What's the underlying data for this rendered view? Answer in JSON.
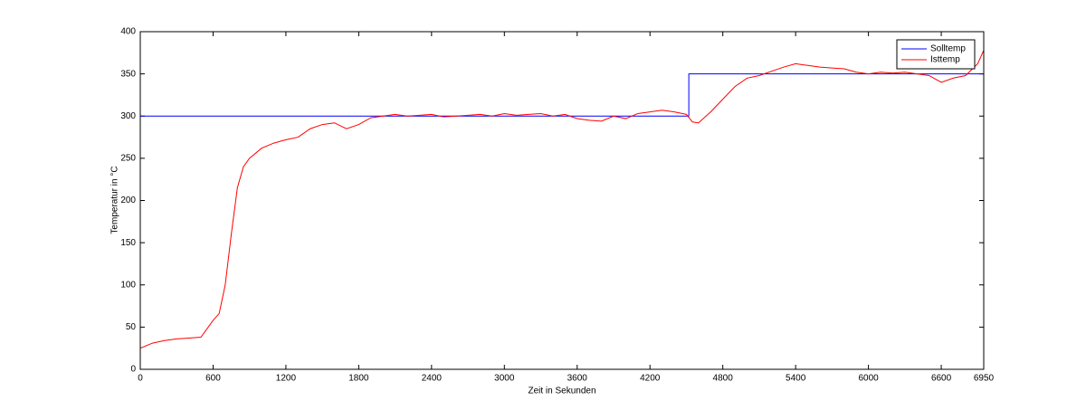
{
  "chart_data": {
    "type": "line",
    "xlabel": "Zeit in Sekunden",
    "ylabel": "Temperatur in °C",
    "x": [
      0,
      100,
      200,
      300,
      400,
      500,
      600,
      650,
      700,
      750,
      800,
      850,
      900,
      1000,
      1100,
      1200,
      1300,
      1400,
      1500,
      1600,
      1700,
      1800,
      1900,
      2000,
      2100,
      2200,
      2300,
      2400,
      2500,
      2600,
      2700,
      2800,
      2900,
      3000,
      3100,
      3200,
      3300,
      3400,
      3500,
      3600,
      3700,
      3800,
      3900,
      4000,
      4100,
      4200,
      4300,
      4400,
      4500,
      4550,
      4600,
      4700,
      4800,
      4900,
      5000,
      5100,
      5200,
      5300,
      5400,
      5500,
      5600,
      5700,
      5800,
      5900,
      6000,
      6100,
      6200,
      6300,
      6400,
      6500,
      6600,
      6700,
      6800,
      6900,
      6950
    ],
    "series": [
      {
        "name": "Solltemp",
        "color": "#0000ff",
        "x": [
          0,
          4520,
          4520,
          6950
        ],
        "values": [
          300,
          300,
          350,
          350
        ]
      },
      {
        "name": "Isttemp",
        "color": "#ff0000",
        "values": [
          25,
          31,
          34,
          36,
          37,
          38,
          58,
          66,
          100,
          160,
          215,
          240,
          250,
          262,
          268,
          272,
          275,
          285,
          290,
          292,
          285,
          290,
          298,
          300,
          302,
          300,
          301,
          302,
          299,
          300,
          301,
          302,
          300,
          303,
          301,
          302,
          303,
          300,
          302,
          297,
          295,
          294,
          300,
          297,
          303,
          305,
          307,
          305,
          302,
          293,
          292,
          305,
          320,
          335,
          345,
          348,
          353,
          358,
          362,
          360,
          358,
          357,
          356,
          352,
          350,
          352,
          351,
          352,
          350,
          348,
          340,
          345,
          348,
          362,
          378
        ]
      }
    ],
    "xlim": [
      0,
      6950
    ],
    "xticks": [
      0,
      600,
      1200,
      1800,
      2400,
      3000,
      3600,
      4200,
      4800,
      5400,
      6000,
      6600,
      6950
    ],
    "ylim": [
      0,
      400
    ],
    "yticks": [
      0,
      50,
      100,
      150,
      200,
      250,
      300,
      350,
      400
    ],
    "legend": "northeast",
    "grid": false
  }
}
